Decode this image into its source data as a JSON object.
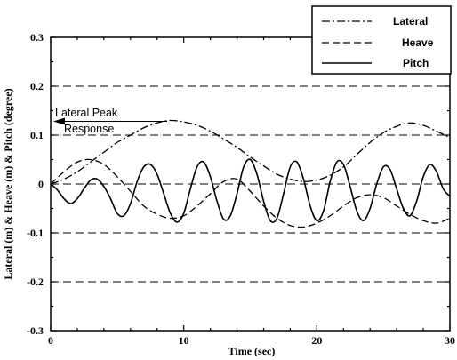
{
  "chart_data": {
    "type": "line",
    "title": "",
    "xlabel": "Time (sec)",
    "ylabel": "Lateral (m) & Heave (m) & Pitch (degree)",
    "xlim": [
      0,
      30
    ],
    "ylim": [
      -0.3,
      0.3
    ],
    "x_ticks": [
      "0",
      "10",
      "20",
      "30"
    ],
    "y_ticks": [
      "0.3",
      "0.2",
      "0.1",
      "0",
      "-0.1",
      "-0.2",
      "-0.3"
    ],
    "grid": "dashed horizontal lines at 0.2, 0.1, 0, -0.1, -0.2",
    "legend_position": "top-right",
    "series": [
      {
        "name": "Lateral",
        "style": "dash-dot",
        "x": [
          0,
          1,
          2,
          3,
          4,
          5,
          6,
          7,
          8,
          9,
          10,
          11,
          12,
          13,
          14,
          15,
          16,
          17,
          18,
          19,
          20,
          21,
          22,
          23,
          24,
          25,
          26,
          27,
          28,
          29,
          30
        ],
        "values": [
          0,
          0.01,
          0.025,
          0.045,
          0.065,
          0.085,
          0.1,
          0.115,
          0.125,
          0.13,
          0.127,
          0.12,
          0.108,
          0.092,
          0.075,
          0.055,
          0.037,
          0.02,
          0.01,
          0.005,
          0.008,
          0.018,
          0.035,
          0.06,
          0.085,
          0.105,
          0.118,
          0.125,
          0.12,
          0.108,
          0.095
        ]
      },
      {
        "name": "Heave",
        "style": "dashed",
        "x": [
          0,
          1,
          2,
          3,
          4,
          5,
          6,
          7,
          8,
          9,
          10,
          11,
          12,
          13,
          14,
          15,
          16,
          17,
          18,
          19,
          20,
          21,
          22,
          23,
          24,
          25,
          26,
          27,
          28,
          29,
          30
        ],
        "values": [
          0,
          0.025,
          0.045,
          0.05,
          0.04,
          0.015,
          -0.015,
          -0.045,
          -0.062,
          -0.07,
          -0.065,
          -0.045,
          -0.02,
          0.005,
          0.01,
          -0.015,
          -0.045,
          -0.07,
          -0.085,
          -0.088,
          -0.08,
          -0.065,
          -0.045,
          -0.028,
          -0.022,
          -0.028,
          -0.045,
          -0.062,
          -0.075,
          -0.08,
          -0.07
        ]
      },
      {
        "name": "Pitch",
        "style": "solid",
        "x": [
          0,
          0.5,
          1,
          1.5,
          2,
          2.5,
          3,
          3.5,
          4,
          4.5,
          5,
          5.5,
          6,
          6.5,
          7,
          7.5,
          8,
          8.5,
          9,
          9.5,
          10,
          10.5,
          11,
          11.5,
          12,
          12.5,
          13,
          13.5,
          14,
          14.5,
          15,
          15.5,
          16,
          16.5,
          17,
          17.5,
          18,
          18.5,
          19,
          19.5,
          20,
          20.5,
          21,
          21.5,
          22,
          22.5,
          23,
          23.5,
          24,
          24.5,
          25,
          25.5,
          26,
          26.5,
          27,
          27.5,
          28,
          28.5,
          29,
          29.5,
          30
        ],
        "values": [
          0,
          -0.012,
          -0.03,
          -0.04,
          -0.03,
          -0.01,
          0.008,
          0.01,
          -0.005,
          -0.03,
          -0.06,
          -0.065,
          -0.04,
          0.005,
          0.035,
          0.04,
          0.02,
          -0.02,
          -0.06,
          -0.078,
          -0.06,
          -0.01,
          0.035,
          0.045,
          0.015,
          -0.035,
          -0.072,
          -0.065,
          -0.02,
          0.035,
          0.05,
          0.02,
          -0.035,
          -0.075,
          -0.07,
          -0.02,
          0.035,
          0.045,
          0.01,
          -0.045,
          -0.075,
          -0.055,
          0.005,
          0.045,
          0.04,
          -0.005,
          -0.055,
          -0.075,
          -0.05,
          0.0,
          0.035,
          0.03,
          -0.01,
          -0.05,
          -0.065,
          -0.035,
          0.015,
          0.04,
          0.025,
          -0.01,
          -0.025
        ]
      }
    ],
    "annotations": [
      {
        "text_line1": "Lateral Peak",
        "text_line2": "Response",
        "points_to_y": 0.13
      }
    ]
  }
}
